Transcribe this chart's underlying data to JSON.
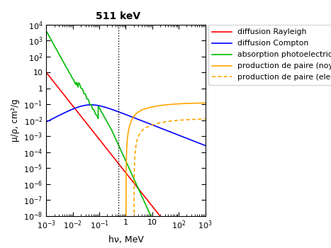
{
  "title": "511 keV",
  "xlabel": "hν, MeV",
  "ylabel": "μ/ρ, cm²/g",
  "xmin": 0.001,
  "xmax": 1000.0,
  "ymin": 1e-08,
  "ymax": 10000.0,
  "vline_x": 0.511,
  "colors": {
    "rayleigh": "#ff0000",
    "compton": "#0000ff",
    "photo": "#00bb00",
    "pair_noyau": "#ffa500",
    "pair_electron": "#ffa500"
  },
  "legend_labels": [
    "diffusion Rayleigh",
    "diffusion Compton",
    "absorption photoelectrique",
    "production de paire (noyau)",
    "production de paire (electron)"
  ]
}
